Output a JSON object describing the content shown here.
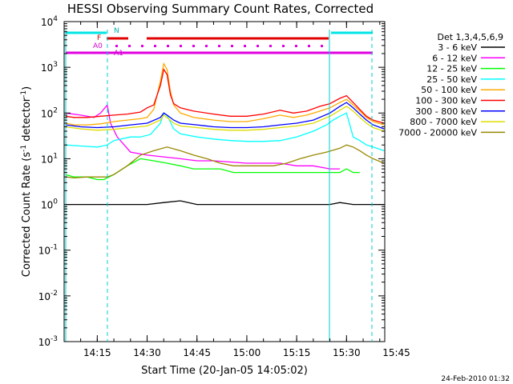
{
  "chart_data": {
    "type": "line",
    "title": "HESSI Observing Summary Count Rates, Corrected",
    "xlabel": "Start Time (20-Jan-05 14:05:02)",
    "ylabel": "Corrected Count Rate (s⁻¹ detector⁻¹)",
    "ylabel_main": "Corrected Count Rate (s",
    "ylabel_mid": " detector",
    "ylabel_end": ")",
    "ylabel_sup": "-1",
    "y_scale": "log",
    "ylim": [
      0.001,
      10000
    ],
    "xlim_min": [
      5.03,
      101.5
    ],
    "x_ticks": [
      {
        "min": 15,
        "label": "14:15"
      },
      {
        "min": 30,
        "label": "14:30"
      },
      {
        "min": 45,
        "label": "14:45"
      },
      {
        "min": 60,
        "label": "15:00"
      },
      {
        "min": 75,
        "label": "15:15"
      },
      {
        "min": 90,
        "label": "15:30"
      },
      {
        "min": 105,
        "label": "15:45"
      }
    ],
    "y_ticks": [
      {
        "value": 0.001,
        "base": "10",
        "exp": "-3"
      },
      {
        "value": 0.01,
        "base": "10",
        "exp": "-2"
      },
      {
        "value": 0.1,
        "base": "10",
        "exp": "-1"
      },
      {
        "value": 1,
        "base": "10",
        "exp": "0"
      },
      {
        "value": 10,
        "base": "10",
        "exp": "1"
      },
      {
        "value": 100,
        "base": "10",
        "exp": "2"
      },
      {
        "value": 1000,
        "base": "10",
        "exp": "3"
      },
      {
        "value": 10000,
        "base": "10",
        "exp": "4"
      }
    ],
    "legend_header": "Det 1,3,4,5,6,9",
    "legend_placement": "right",
    "series": [
      {
        "name": "3 - 6 keV",
        "color": "#000000",
        "x": [
          5.5,
          10,
          14,
          17,
          19,
          22,
          26,
          30,
          35,
          40,
          45,
          50,
          55,
          60,
          65,
          70,
          75,
          80,
          85,
          88,
          92,
          96,
          100,
          101.3
        ],
        "y": [
          1.0,
          1.0,
          1.0,
          1.0,
          1.0,
          1.0,
          1.0,
          1.0,
          1.1,
          1.2,
          1.0,
          1.0,
          1.0,
          1.0,
          1.0,
          1.0,
          1.0,
          1.0,
          1.0,
          1.1,
          1.0,
          1.0,
          1.0,
          1.0
        ]
      },
      {
        "name": "6 - 12 keV",
        "color": "#ff00ff",
        "x": [
          5.5,
          10,
          14,
          16,
          18,
          19,
          21,
          25,
          30,
          35,
          40,
          45,
          50,
          55,
          60,
          65,
          70,
          75,
          80,
          85,
          88
        ],
        "y": [
          100,
          90,
          80,
          100,
          150,
          60,
          30,
          14,
          12,
          11,
          10,
          9,
          9,
          8.5,
          8,
          8,
          8,
          7,
          7,
          6,
          6
        ]
      },
      {
        "name": "12 - 25 keV",
        "color": "#00ff00",
        "x": [
          5.5,
          8,
          12,
          15,
          17,
          20,
          24,
          28,
          32,
          36,
          40,
          44,
          48,
          52,
          56,
          60,
          64,
          68,
          72,
          76,
          80,
          84,
          88,
          90,
          92,
          94
        ],
        "y": [
          4.5,
          4,
          4,
          3.5,
          3.5,
          4.5,
          7,
          10,
          9,
          8,
          7,
          6,
          6,
          6,
          5,
          5,
          5,
          5,
          5,
          5,
          5,
          5,
          5,
          6,
          5,
          5
        ]
      },
      {
        "name": "25 - 50 keV",
        "color": "#00ffff",
        "x": [
          5.5,
          10,
          15,
          18,
          20,
          25,
          28,
          31,
          34,
          35,
          36,
          38,
          40,
          45,
          50,
          55,
          60,
          65,
          70,
          75,
          80,
          84,
          86,
          88,
          90,
          92,
          94,
          96,
          98,
          101.3
        ],
        "y": [
          20,
          19,
          18,
          20,
          25,
          30,
          30,
          34,
          60,
          100,
          90,
          45,
          35,
          30,
          27,
          25,
          24,
          24,
          25,
          30,
          40,
          55,
          70,
          85,
          100,
          30,
          25,
          20,
          18,
          15
        ]
      },
      {
        "name": "50 - 100 keV",
        "color": "#ffaa00",
        "x": [
          5.5,
          8,
          12,
          16,
          20,
          24,
          28,
          30,
          32,
          34,
          35,
          36,
          37,
          38,
          40,
          44,
          50,
          55,
          60,
          65,
          70,
          74,
          78,
          82,
          85,
          88,
          90,
          92,
          94,
          96,
          98,
          101.3
        ],
        "y": [
          60,
          55,
          55,
          58,
          65,
          70,
          75,
          80,
          120,
          500,
          1200,
          900,
          300,
          150,
          100,
          80,
          70,
          65,
          65,
          75,
          90,
          80,
          90,
          110,
          130,
          170,
          200,
          150,
          110,
          80,
          65,
          55
        ]
      },
      {
        "name": "100 - 300 keV",
        "color": "#ff0000",
        "x": [
          5.5,
          8,
          12,
          16,
          20,
          24,
          28,
          30,
          32,
          34,
          35,
          36,
          37,
          38,
          40,
          44,
          50,
          55,
          60,
          65,
          70,
          74,
          78,
          82,
          85,
          88,
          90,
          92,
          94,
          96,
          98,
          101.3
        ],
        "y": [
          85,
          80,
          80,
          85,
          90,
          95,
          105,
          130,
          150,
          400,
          900,
          700,
          250,
          160,
          130,
          110,
          95,
          85,
          85,
          95,
          115,
          100,
          110,
          140,
          160,
          210,
          240,
          170,
          120,
          85,
          70,
          60
        ]
      },
      {
        "name": "300 - 800 keV",
        "color": "#0000ff",
        "x": [
          5.5,
          10,
          15,
          20,
          25,
          30,
          34,
          35,
          36,
          38,
          40,
          45,
          50,
          55,
          60,
          65,
          70,
          75,
          80,
          85,
          88,
          90,
          92,
          94,
          96,
          98,
          101.3
        ],
        "y": [
          55,
          50,
          48,
          50,
          55,
          60,
          80,
          100,
          90,
          70,
          60,
          55,
          50,
          48,
          48,
          50,
          55,
          60,
          70,
          100,
          140,
          170,
          130,
          95,
          70,
          55,
          45
        ]
      },
      {
        "name": "800 - 7000 keV",
        "color": "#dddd00",
        "x": [
          5.5,
          10,
          15,
          20,
          25,
          30,
          34,
          35,
          36,
          38,
          40,
          45,
          50,
          55,
          60,
          65,
          70,
          75,
          80,
          85,
          88,
          90,
          92,
          94,
          96,
          98,
          101.3
        ],
        "y": [
          50,
          45,
          42,
          44,
          48,
          52,
          70,
          90,
          80,
          60,
          52,
          48,
          44,
          42,
          42,
          44,
          48,
          52,
          60,
          85,
          115,
          140,
          110,
          80,
          60,
          48,
          40
        ]
      },
      {
        "name": "7000 - 20000 keV",
        "color": "#998800",
        "x": [
          5.5,
          8,
          12,
          15,
          18,
          20,
          24,
          28,
          32,
          36,
          40,
          44,
          48,
          52,
          56,
          60,
          64,
          68,
          72,
          76,
          80,
          84,
          88,
          90,
          92,
          94,
          96,
          98,
          101.3
        ],
        "y": [
          4,
          3.8,
          4,
          4,
          4,
          4.5,
          7,
          12,
          15,
          18,
          15,
          12,
          10,
          8,
          7,
          7,
          7,
          7,
          8,
          10,
          12,
          14,
          17,
          20,
          18,
          15,
          12,
          10,
          8
        ]
      }
    ],
    "flags": {
      "n_label": "N",
      "f_label": "F",
      "a0_label": "A0",
      "a1_label": "A1"
    },
    "footer_date": "24-Feb-2010 01:32"
  }
}
